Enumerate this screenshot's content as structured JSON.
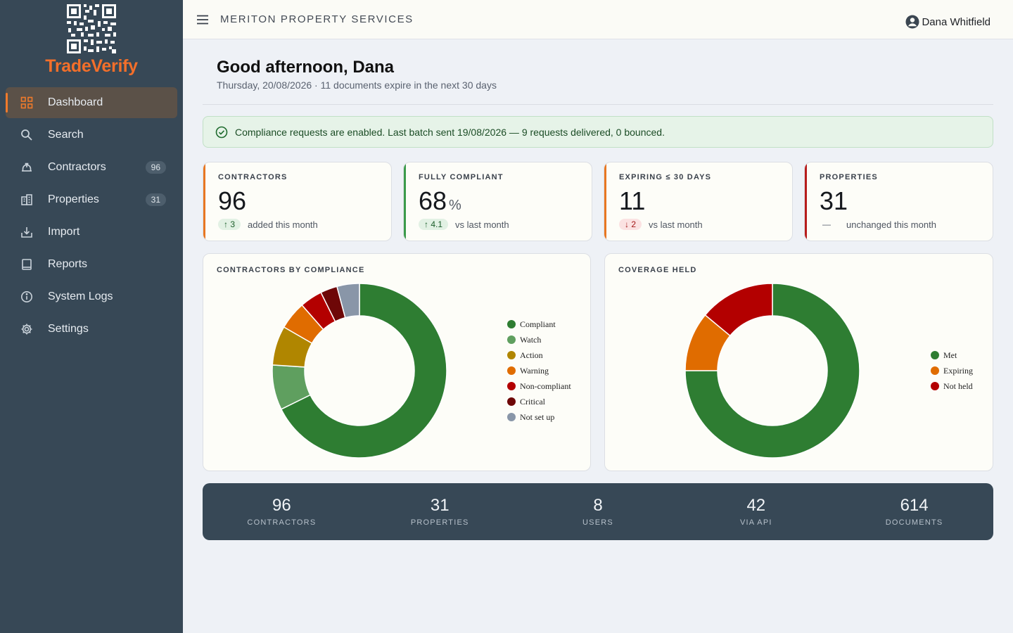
{
  "brand": {
    "name": "TradeVerify",
    "accent": "#f36f2a"
  },
  "header": {
    "org_name": "MERITON PROPERTY SERVICES",
    "user_name": "Dana Whitfield"
  },
  "nav": {
    "items": [
      {
        "label": "Dashboard",
        "icon": "grid-icon",
        "active": true
      },
      {
        "label": "Search",
        "icon": "search-icon"
      },
      {
        "label": "Contractors",
        "icon": "hard-hat-icon",
        "count": "96"
      },
      {
        "label": "Properties",
        "icon": "building-icon",
        "count": "31"
      },
      {
        "label": "Import",
        "icon": "download-icon"
      },
      {
        "label": "Reports",
        "icon": "book-icon"
      },
      {
        "label": "System Logs",
        "icon": "info-icon"
      },
      {
        "label": "Settings",
        "icon": "gear-icon"
      }
    ]
  },
  "main": {
    "greeting": "Good afternoon, Dana",
    "subtitle": "Thursday, 20/08/2026 · 11 documents expire in the next 30 days",
    "alert": "Compliance requests are enabled. Last batch sent 19/08/2026 — 9 requests delivered, 0 bounced."
  },
  "kpis": [
    {
      "label": "CONTRACTORS",
      "value": "96",
      "unit": "",
      "delta": "3",
      "direction": "up",
      "note": "added this month",
      "accent": "#e87722"
    },
    {
      "label": "FULLY COMPLIANT",
      "value": "68",
      "unit": "%",
      "delta": "4.1",
      "direction": "up",
      "note": "vs last month",
      "accent": "#3b9a4a"
    },
    {
      "label": "EXPIRING ≤ 30 DAYS",
      "value": "11",
      "unit": "",
      "delta": "2",
      "direction": "down",
      "note": "vs last month",
      "accent": "#e87722"
    },
    {
      "label": "PROPERTIES",
      "value": "31",
      "unit": "",
      "delta": "—",
      "direction": "flat",
      "note": "unchanged this month",
      "accent": "#b71c1c"
    }
  ],
  "chart_data": [
    {
      "type": "pie",
      "title": "CONTRACTORS BY COMPLIANCE",
      "legend": "right",
      "categories": [
        "Compliant",
        "Watch",
        "Action",
        "Warning",
        "Non-compliant",
        "Critical",
        "Not set up"
      ],
      "values": [
        65,
        8,
        7,
        5,
        4,
        3,
        4
      ],
      "colors": [
        "#2e7d32",
        "#5f9f5f",
        "#b08600",
        "#e06c00",
        "#b30000",
        "#6e0707",
        "#8996a8"
      ]
    },
    {
      "type": "pie",
      "title": "COVERAGE HELD",
      "legend": "right",
      "categories": [
        "Met",
        "Expiring",
        "Not held"
      ],
      "values": [
        75,
        11,
        14
      ],
      "colors": [
        "#2e7d32",
        "#e06c00",
        "#b30000"
      ]
    }
  ],
  "stats": [
    {
      "value": "96",
      "label": "CONTRACTORS"
    },
    {
      "value": "31",
      "label": "PROPERTIES"
    },
    {
      "value": "8",
      "label": "USERS"
    },
    {
      "value": "42",
      "label": "VIA API"
    },
    {
      "value": "614",
      "label": "DOCUMENTS"
    }
  ]
}
